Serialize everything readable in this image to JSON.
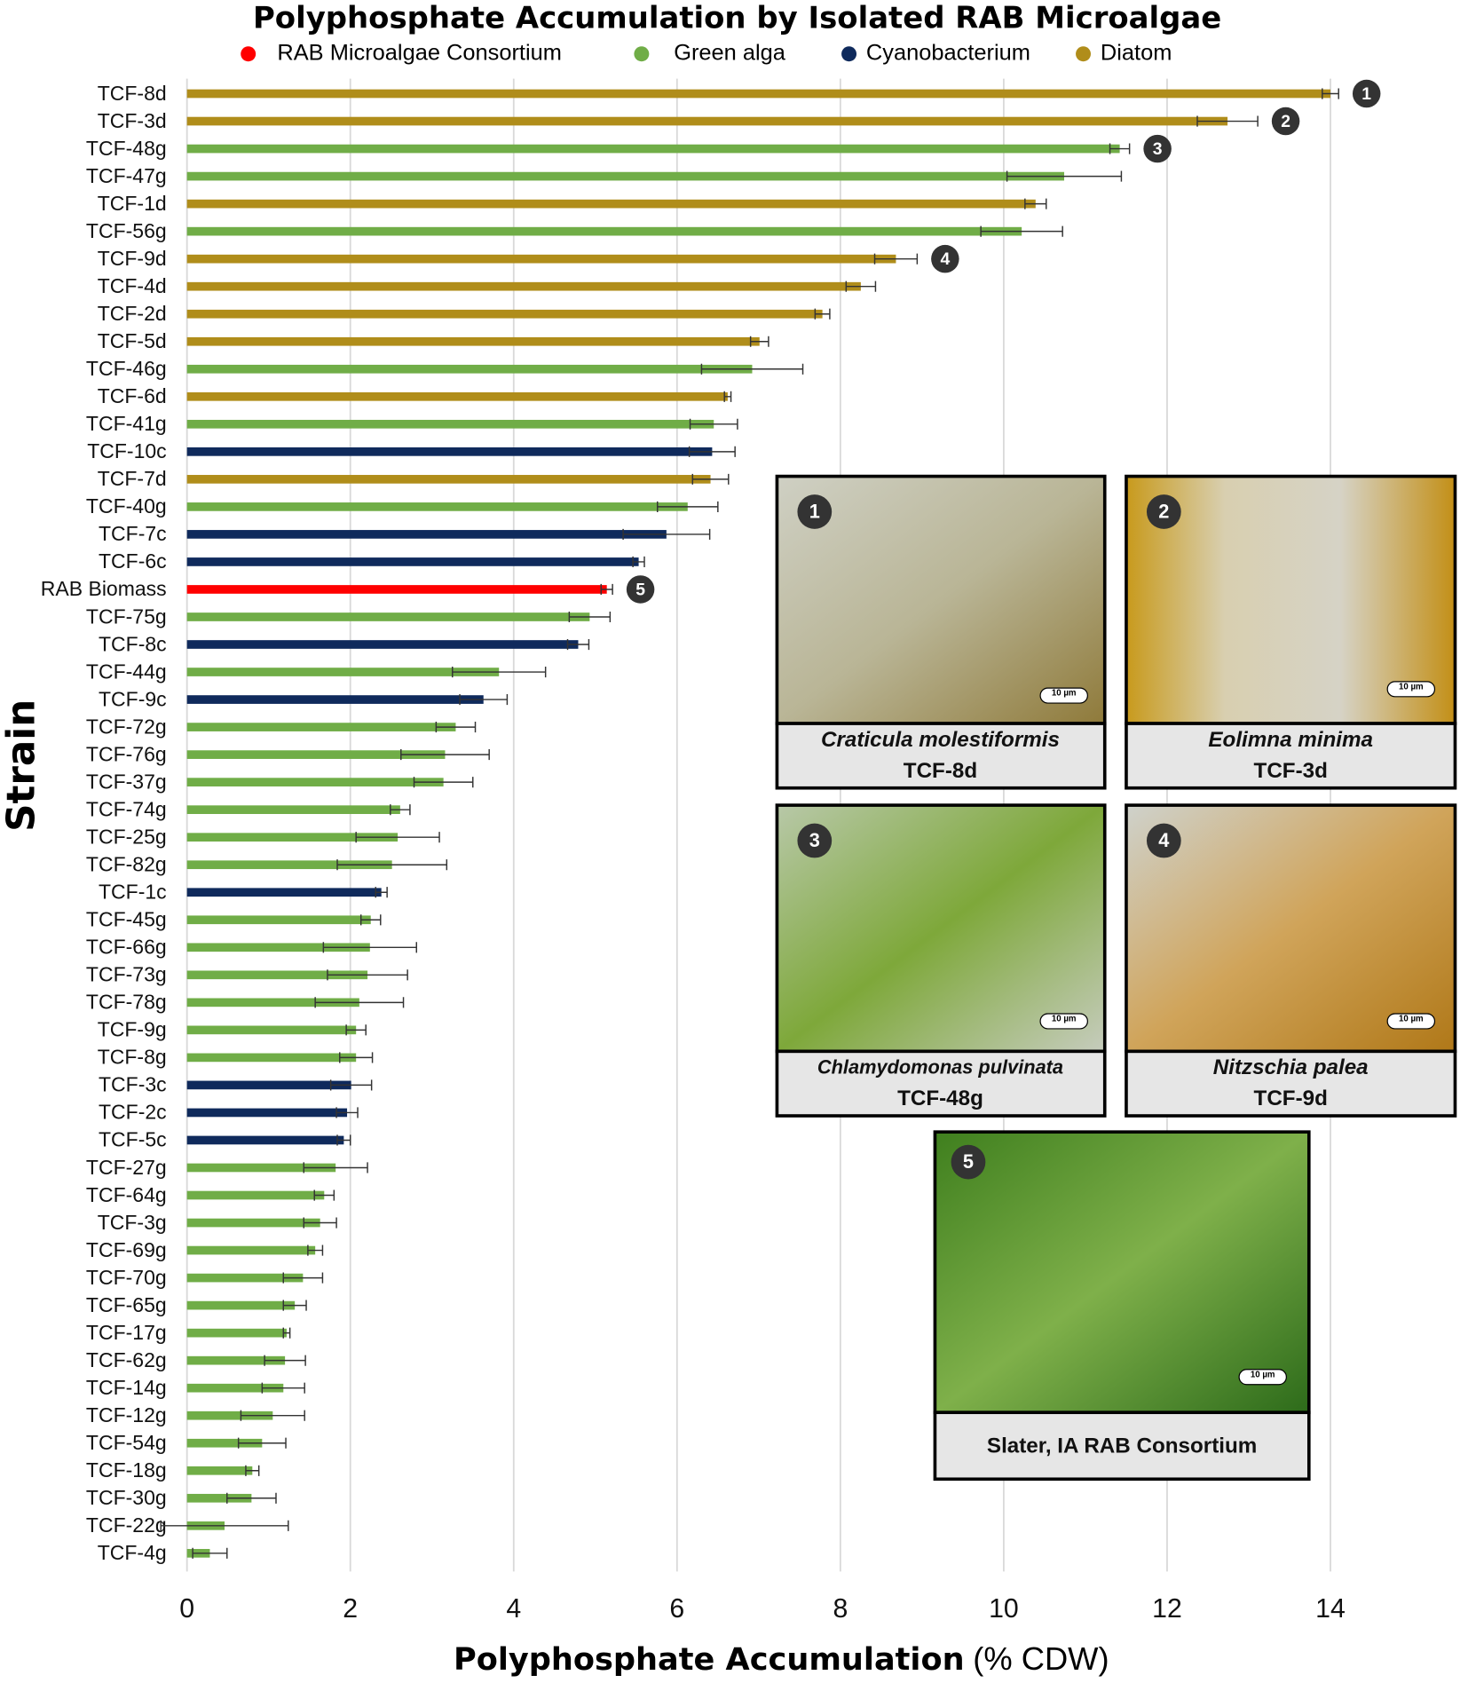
{
  "chart_data": {
    "type": "bar",
    "orientation": "horizontal",
    "title": "Polyphosphate Accumulation by Isolated RAB Microalgae",
    "xlabel": "Polyphosphate Accumulation",
    "xlabel_unit": "(% CDW)",
    "ylabel": "Strain",
    "xlim": [
      0,
      15
    ],
    "xticks": [
      0,
      2,
      4,
      6,
      8,
      10,
      12,
      14
    ],
    "grid": true,
    "categories": [
      "TCF-8d",
      "TCF-3d",
      "TCF-48g",
      "TCF-47g",
      "TCF-1d",
      "TCF-56g",
      "TCF-9d",
      "TCF-4d",
      "TCF-2d",
      "TCF-5d",
      "TCF-46g",
      "TCF-6d",
      "TCF-41g",
      "TCF-10c",
      "TCF-7d",
      "TCF-40g",
      "TCF-7c",
      "TCF-6c",
      "RAB Biomass",
      "TCF-75g",
      "TCF-8c",
      "TCF-44g",
      "TCF-9c",
      "TCF-72g",
      "TCF-76g",
      "TCF-37g",
      "TCF-74g",
      "TCF-25g",
      "TCF-82g",
      "TCF-1c",
      "TCF-45g",
      "TCF-66g",
      "TCF-73g",
      "TCF-78g",
      "TCF-9g",
      "TCF-8g",
      "TCF-3c",
      "TCF-2c",
      "TCF-5c",
      "TCF-27g",
      "TCF-64g",
      "TCF-3g",
      "TCF-69g",
      "TCF-70g",
      "TCF-65g",
      "TCF-17g",
      "TCF-62g",
      "TCF-14g",
      "TCF-12g",
      "TCF-54g",
      "TCF-18g",
      "TCF-30g",
      "TCF-22g",
      "TCF-4g"
    ],
    "series": [
      {
        "name": "RAB Microalgae Consortium",
        "color": "#ff0000",
        "values": [
          null,
          null,
          null,
          null,
          null,
          null,
          null,
          null,
          null,
          null,
          null,
          null,
          null,
          null,
          null,
          null,
          null,
          null,
          5.14,
          null,
          null,
          null,
          null,
          null,
          null,
          null,
          null,
          null,
          null,
          null,
          null,
          null,
          null,
          null,
          null,
          null,
          null,
          null,
          null,
          null,
          null,
          null,
          null,
          null,
          null,
          null,
          null,
          null,
          null,
          null,
          null,
          null,
          null,
          null
        ],
        "errors": [
          null,
          null,
          null,
          null,
          null,
          null,
          null,
          null,
          null,
          null,
          null,
          null,
          null,
          null,
          null,
          null,
          null,
          null,
          0.07,
          null,
          null,
          null,
          null,
          null,
          null,
          null,
          null,
          null,
          null,
          null,
          null,
          null,
          null,
          null,
          null,
          null,
          null,
          null,
          null,
          null,
          null,
          null,
          null,
          null,
          null,
          null,
          null,
          null,
          null,
          null,
          null,
          null,
          null,
          null
        ]
      },
      {
        "name": "Green alga",
        "color": "#70ad47",
        "values": [
          null,
          null,
          11.42,
          10.74,
          null,
          10.22,
          null,
          null,
          null,
          null,
          6.92,
          null,
          6.45,
          null,
          null,
          6.13,
          null,
          null,
          null,
          4.93,
          null,
          3.82,
          null,
          3.29,
          3.16,
          3.14,
          2.61,
          2.58,
          2.51,
          null,
          2.25,
          2.24,
          2.21,
          2.11,
          2.07,
          2.07,
          null,
          null,
          null,
          1.82,
          1.68,
          1.63,
          1.57,
          1.42,
          1.32,
          1.22,
          1.2,
          1.18,
          1.05,
          0.92,
          0.8,
          0.79,
          0.46,
          0.28
        ],
        "errors": [
          null,
          null,
          0.12,
          0.7,
          null,
          0.5,
          null,
          null,
          null,
          null,
          0.62,
          null,
          0.29,
          null,
          null,
          0.37,
          null,
          null,
          null,
          0.25,
          null,
          0.57,
          null,
          0.24,
          0.54,
          0.36,
          0.12,
          0.51,
          0.67,
          null,
          0.12,
          0.57,
          0.49,
          0.54,
          0.12,
          0.2,
          null,
          null,
          null,
          0.39,
          0.12,
          0.2,
          0.09,
          0.24,
          0.14,
          0.04,
          0.25,
          0.26,
          0.39,
          0.29,
          0.08,
          0.3,
          0.78,
          0.21
        ]
      },
      {
        "name": "Cyanobacterium",
        "color": "#0f2a5c",
        "values": [
          null,
          null,
          null,
          null,
          null,
          null,
          null,
          null,
          null,
          null,
          null,
          null,
          null,
          6.43,
          null,
          null,
          5.87,
          5.53,
          null,
          null,
          4.79,
          null,
          3.63,
          null,
          null,
          null,
          null,
          null,
          null,
          2.38,
          null,
          null,
          null,
          null,
          null,
          null,
          2.01,
          1.96,
          1.92,
          null,
          null,
          null,
          null,
          null,
          null,
          null,
          null,
          null,
          null,
          null,
          null,
          null,
          null,
          null
        ],
        "errors": [
          null,
          null,
          null,
          null,
          null,
          null,
          null,
          null,
          null,
          null,
          null,
          null,
          null,
          0.28,
          null,
          null,
          0.53,
          0.07,
          null,
          null,
          0.13,
          null,
          0.29,
          null,
          null,
          null,
          null,
          null,
          null,
          0.07,
          null,
          null,
          null,
          null,
          null,
          null,
          0.25,
          0.13,
          0.08,
          null,
          null,
          null,
          null,
          null,
          null,
          null,
          null,
          null,
          null,
          null,
          null,
          null,
          null,
          null
        ]
      },
      {
        "name": "Diatom",
        "color": "#b08d1a",
        "values": [
          14,
          12.74,
          null,
          null,
          10.39,
          null,
          8.68,
          8.25,
          7.78,
          7.01,
          null,
          6.62,
          null,
          null,
          6.41,
          null,
          null,
          null,
          null,
          null,
          null,
          null,
          null,
          null,
          null,
          null,
          null,
          null,
          null,
          null,
          null,
          null,
          null,
          null,
          null,
          null,
          null,
          null,
          null,
          null,
          null,
          null,
          null,
          null,
          null,
          null,
          null,
          null,
          null,
          null,
          null,
          null,
          null,
          null
        ],
        "errors": [
          0.1,
          0.37,
          null,
          null,
          0.13,
          null,
          0.26,
          0.18,
          0.09,
          0.11,
          null,
          0.04,
          null,
          null,
          0.22,
          null,
          null,
          null,
          null,
          null,
          null,
          null,
          null,
          null,
          null,
          null,
          null,
          null,
          null,
          null,
          null,
          null,
          null,
          null,
          null,
          null,
          null,
          null,
          null,
          null,
          null,
          null,
          null,
          null,
          null,
          null,
          null,
          null,
          null,
          null,
          null,
          null,
          null,
          null
        ]
      }
    ],
    "markers": [
      {
        "text": "1",
        "category": "TCF-8d"
      },
      {
        "text": "2",
        "category": "TCF-3d"
      },
      {
        "text": "3",
        "category": "TCF-48g"
      },
      {
        "text": "4",
        "category": "TCF-9d"
      },
      {
        "text": "5",
        "category": "RAB Biomass"
      }
    ]
  },
  "panels": [
    {
      "number": "1",
      "species": "Craticula molestiformis",
      "strain": "TCF-8d",
      "scale": "10 µm"
    },
    {
      "number": "2",
      "species": "Eolimna minima",
      "strain": "TCF-3d",
      "scale": "10 µm"
    },
    {
      "number": "3",
      "species": "Chlamydomonas pulvinata",
      "strain": "TCF-48g",
      "scale": "10 µm"
    },
    {
      "number": "4",
      "species": "Nitzschia palea",
      "strain": "TCF-9d",
      "scale": "10 µm"
    },
    {
      "number": "5",
      "caption": "Slater, IA RAB Consortium",
      "scale": "10 µm"
    }
  ]
}
